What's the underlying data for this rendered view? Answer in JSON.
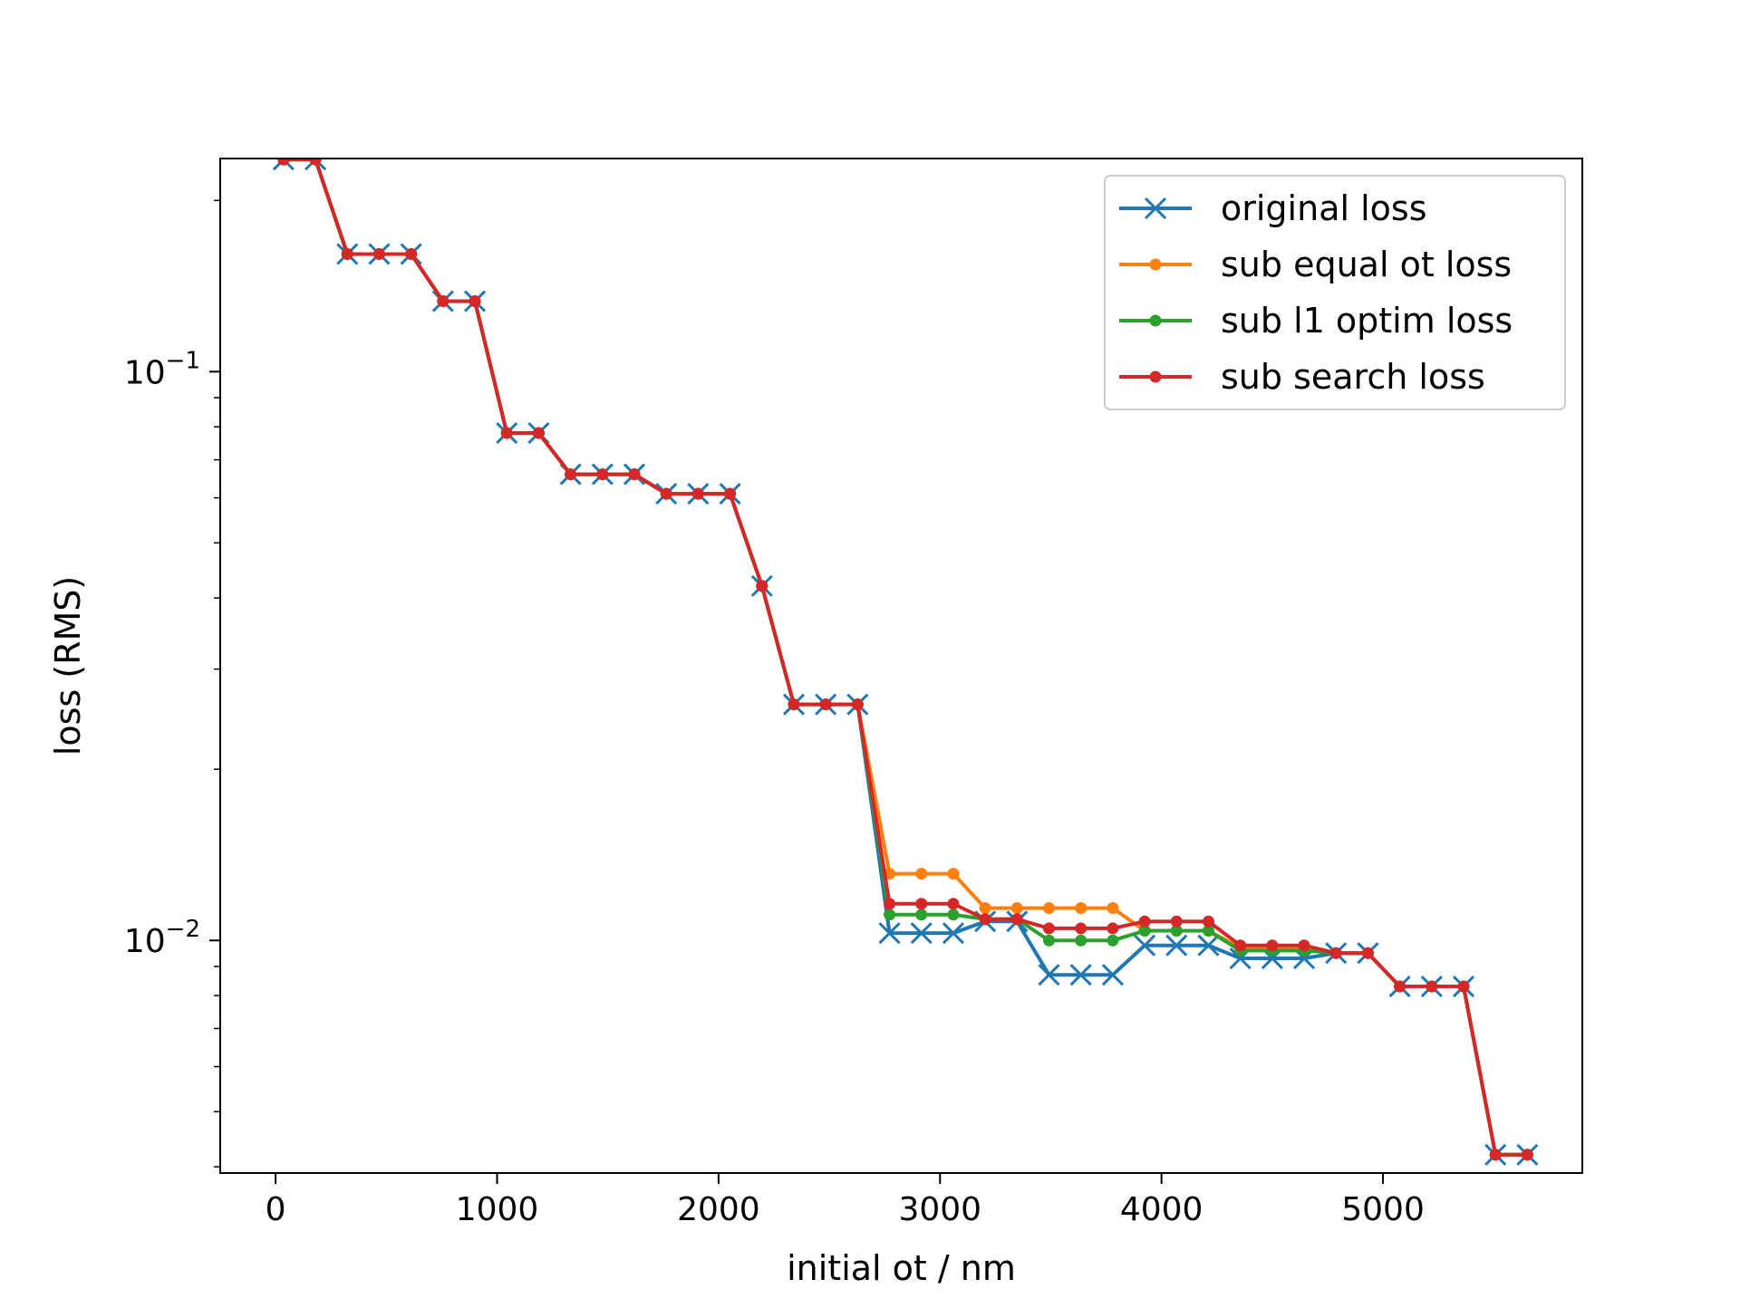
{
  "chart_data": {
    "type": "line",
    "xlabel": "initial ot / nm",
    "ylabel": "loss (RMS)",
    "yscale": "log",
    "xlim": [
      -250,
      5900
    ],
    "ylim": [
      0.0039,
      0.237
    ],
    "xticks": [
      0,
      1000,
      2000,
      3000,
      4000,
      5000
    ],
    "xtick_labels": [
      "0",
      "1000",
      "2000",
      "3000",
      "4000",
      "5000"
    ],
    "yticks": [
      {
        "value": 0.1,
        "base": "10",
        "exponent": "−1"
      },
      {
        "value": 0.01,
        "base": "10",
        "exponent": "−2"
      }
    ],
    "grid": false,
    "legend_position": "top-right",
    "x": [
      36,
      180,
      324,
      468,
      612,
      756,
      900,
      1044,
      1188,
      1332,
      1476,
      1620,
      1764,
      1908,
      2052,
      2196,
      2340,
      2484,
      2628,
      2772,
      2916,
      3060,
      3204,
      3348,
      3492,
      3636,
      3780,
      3924,
      4068,
      4212,
      4356,
      4500,
      4644,
      4788,
      4932,
      5076,
      5220,
      5364,
      5508,
      5652
    ],
    "series": [
      {
        "name": "original loss",
        "color": "#1f77b4",
        "marker": "x",
        "values": [
          0.236,
          0.236,
          0.161,
          0.161,
          0.161,
          0.133,
          0.133,
          0.078,
          0.078,
          0.066,
          0.066,
          0.066,
          0.061,
          0.061,
          0.061,
          0.042,
          0.026,
          0.026,
          0.026,
          0.0103,
          0.0103,
          0.0103,
          0.0108,
          0.0108,
          0.0087,
          0.0087,
          0.0087,
          0.0098,
          0.0098,
          0.0098,
          0.0093,
          0.0093,
          0.0093,
          0.0095,
          0.0095,
          0.0083,
          0.0083,
          0.0083,
          0.0042,
          0.0042
        ]
      },
      {
        "name": "sub equal ot loss",
        "color": "#ff7f0e",
        "marker": "dot",
        "values": [
          0.236,
          0.236,
          0.161,
          0.161,
          0.161,
          0.133,
          0.133,
          0.078,
          0.078,
          0.066,
          0.066,
          0.066,
          0.061,
          0.061,
          0.061,
          0.042,
          0.026,
          0.026,
          0.026,
          0.0131,
          0.0131,
          0.0131,
          0.0114,
          0.0114,
          0.0114,
          0.0114,
          0.0114,
          0.0104,
          0.0104,
          0.0104,
          0.0097,
          0.0097,
          0.0097,
          0.0095,
          0.0095,
          0.0083,
          0.0083,
          0.0083,
          0.0042,
          0.0042
        ]
      },
      {
        "name": "sub l1 optim loss",
        "color": "#2ca02c",
        "marker": "dot",
        "values": [
          0.236,
          0.236,
          0.161,
          0.161,
          0.161,
          0.133,
          0.133,
          0.078,
          0.078,
          0.066,
          0.066,
          0.066,
          0.061,
          0.061,
          0.061,
          0.042,
          0.026,
          0.026,
          0.026,
          0.0111,
          0.0111,
          0.0111,
          0.0109,
          0.0109,
          0.01,
          0.01,
          0.01,
          0.0104,
          0.0104,
          0.0104,
          0.0096,
          0.0096,
          0.0096,
          0.0095,
          0.0095,
          0.0083,
          0.0083,
          0.0083,
          0.0042,
          0.0042
        ]
      },
      {
        "name": "sub search loss",
        "color": "#d62728",
        "marker": "dot",
        "values": [
          0.236,
          0.236,
          0.161,
          0.161,
          0.161,
          0.133,
          0.133,
          0.078,
          0.078,
          0.066,
          0.066,
          0.066,
          0.061,
          0.061,
          0.061,
          0.042,
          0.026,
          0.026,
          0.026,
          0.0116,
          0.0116,
          0.0116,
          0.0109,
          0.0109,
          0.0105,
          0.0105,
          0.0105,
          0.0108,
          0.0108,
          0.0108,
          0.0098,
          0.0098,
          0.0098,
          0.0095,
          0.0095,
          0.0083,
          0.0083,
          0.0083,
          0.0042,
          0.0042
        ]
      }
    ]
  }
}
